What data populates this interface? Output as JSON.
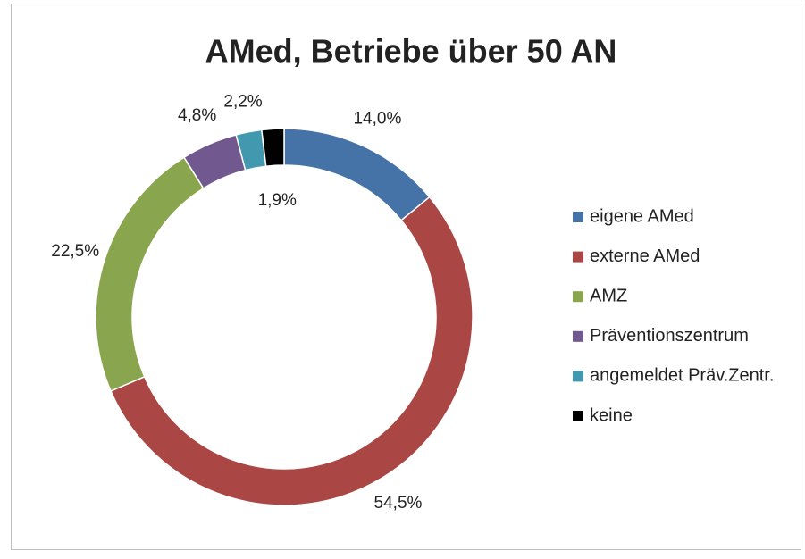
{
  "chart_data": {
    "type": "donut",
    "title": "AMed, Betriebe über 50 AN",
    "categories": [
      "eigene AMed",
      "externe AMed",
      "AMZ",
      "Präventionszentrum",
      "angemeldet Präv.Zentr.",
      "keine"
    ],
    "values": [
      14.0,
      54.5,
      22.5,
      4.8,
      2.2,
      1.9
    ],
    "value_labels": [
      "14,0%",
      "54,5%",
      "22,5%",
      "4,8%",
      "2,2%",
      "1,9%"
    ],
    "colors": [
      "#4572a7",
      "#aa4643",
      "#89a54e",
      "#71588f",
      "#4198af",
      "#000000"
    ],
    "legend": "right"
  }
}
